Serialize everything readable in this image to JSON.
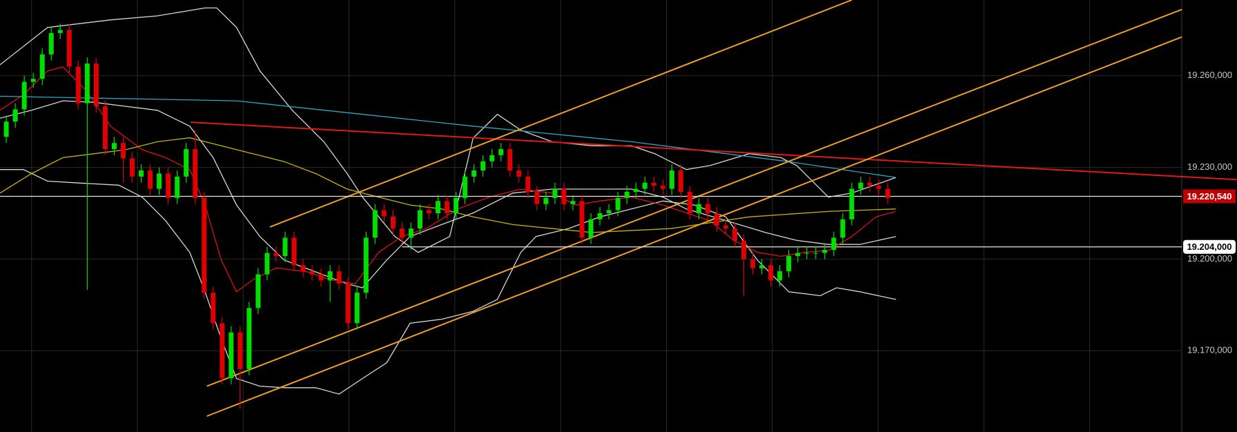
{
  "chart_data": {
    "type": "candlestick",
    "open": [
      19240,
      19245,
      19249,
      19258,
      19259,
      19267,
      19274,
      19275,
      19263,
      19251,
      19264,
      19250,
      19236,
      19238,
      19233,
      19227,
      19229,
      19223,
      19228,
      19220,
      19227,
      19236,
      19220,
      19189,
      19179,
      19161,
      19176,
      19164,
      19184,
      19195,
      19202,
      19201,
      19207,
      19198,
      19196,
      19195,
      19193,
      19196,
      19192,
      19179,
      19189,
      19207,
      19216,
      19214,
      19210,
      19207,
      19210,
      19216,
      19215,
      19219,
      19215,
      19220,
      19227,
      19229,
      19232,
      19234,
      19236,
      19229,
      19227,
      19222,
      19218,
      19220,
      19223,
      19218,
      19219,
      19207,
      19213,
      19215,
      19216,
      19220,
      19222,
      19223,
      19225,
      19224,
      19223,
      19229,
      19222,
      19215,
      19218,
      19215,
      19211,
      19210,
      19206,
      19200,
      19197,
      19198,
      19193,
      19196,
      19201,
      19202,
      19202,
      19202,
      19203,
      19207,
      19213,
      19223,
      19225,
      19224,
      19223
    ],
    "high": [
      19247,
      19251,
      19260,
      19261,
      19269,
      19276,
      19277,
      19277,
      19265,
      19266,
      19266,
      19252,
      19240,
      19240,
      19235,
      19231,
      19231,
      19230,
      19230,
      19229,
      19238,
      19242,
      19222,
      19191,
      19181,
      19178,
      19178,
      19186,
      19197,
      19204,
      19204,
      19209,
      19209,
      19200,
      19198,
      19197,
      19198,
      19198,
      19194,
      19191,
      19209,
      19218,
      19218,
      19216,
      19212,
      19212,
      19218,
      19218,
      19221,
      19221,
      19222,
      19229,
      19231,
      19234,
      19236,
      19238,
      19238,
      19231,
      19229,
      19224,
      19222,
      19225,
      19225,
      19221,
      19221,
      19215,
      19217,
      19218,
      19222,
      19224,
      19225,
      19227,
      19227,
      19226,
      19231,
      19231,
      19224,
      19220,
      19220,
      19217,
      19213,
      19212,
      19208,
      19202,
      19200,
      19200,
      19198,
      19203,
      19204,
      19204,
      19204,
      19205,
      19209,
      19215,
      19225,
      19227,
      19227,
      19226,
      19225
    ],
    "low": [
      19238,
      19243,
      19247,
      19256,
      19257,
      19265,
      19272,
      19261,
      19249,
      19190,
      19248,
      19234,
      19234,
      19225,
      19225,
      19225,
      19221,
      19221,
      19218,
      19218,
      19225,
      19218,
      19187,
      19177,
      19159,
      19159,
      19151,
      19162,
      19182,
      19193,
      19199,
      19199,
      19196,
      19194,
      19193,
      19191,
      19186,
      19190,
      19177,
      19177,
      19187,
      19205,
      19212,
      19208,
      19205,
      19203,
      19208,
      19213,
      19213,
      19213,
      19213,
      19218,
      19225,
      19227,
      19230,
      19232,
      19227,
      19225,
      19220,
      19216,
      19216,
      19218,
      19216,
      19216,
      19205,
      19205,
      19211,
      19213,
      19214,
      19218,
      19220,
      19221,
      19222,
      19221,
      19221,
      19220,
      19213,
      19213,
      19213,
      19209,
      19208,
      19204,
      19188,
      19195,
      19195,
      19191,
      19191,
      19194,
      19199,
      19200,
      19200,
      19200,
      19201,
      19205,
      19211,
      19221,
      19222,
      19221,
      19218
    ],
    "close": [
      19245,
      19249,
      19258,
      19259,
      19267,
      19274,
      19275,
      19263,
      19251,
      19264,
      19250,
      19236,
      19238,
      19233,
      19227,
      19229,
      19223,
      19228,
      19220,
      19227,
      19236,
      19220,
      19189,
      19179,
      19161,
      19176,
      19164,
      19184,
      19195,
      19202,
      19201,
      19207,
      19198,
      19196,
      19195,
      19193,
      19196,
      19192,
      19179,
      19189,
      19207,
      19216,
      19214,
      19210,
      19207,
      19210,
      19216,
      19215,
      19219,
      19215,
      19220,
      19227,
      19229,
      19232,
      19234,
      19236,
      19229,
      19227,
      19222,
      19218,
      19220,
      19223,
      19218,
      19219,
      19207,
      19213,
      19215,
      19216,
      19220,
      19222,
      19223,
      19225,
      19224,
      19223,
      19229,
      19222,
      19215,
      19218,
      19215,
      19211,
      19210,
      19206,
      19200,
      19197,
      19198,
      19193,
      19196,
      19201,
      19202,
      19202,
      19202,
      19203,
      19207,
      19213,
      19223,
      19225,
      19224,
      19223,
      19220
    ],
    "up_color": "#00e000",
    "down_color": "#e00000",
    "ylim": [
      19143.4,
      19284.8
    ],
    "yticks": [
      {
        "value": 19260,
        "label": "19.260,000"
      },
      {
        "value": 19230,
        "label": "19.230,000"
      },
      {
        "value": 19200,
        "label": "19.200,000"
      },
      {
        "value": 19170,
        "label": "19.170,000"
      }
    ],
    "grid": true,
    "overlays": [
      {
        "color": "#d8d8d8",
        "x": [
          -0.7,
          4.6,
          11.6,
          16.8,
          22.1,
          23.4,
          25.6,
          28.2,
          31.8,
          35.3,
          37.9,
          39.6,
          43.2,
          45.8,
          49.3,
          51.9,
          54.6,
          57.2,
          60.7,
          65.1,
          69.5,
          72.1,
          75.6,
          78.2,
          82.6,
          86.1,
          87.9,
          91.4,
          94.0,
          98.9
        ],
        "values": [
          19263.6,
          19275.8,
          19278.3,
          19279.6,
          19282.2,
          19282.2,
          19275.8,
          19261.6,
          19248.7,
          19238.4,
          19228.0,
          19220.3,
          19207.4,
          19202.2,
          19207.4,
          19239.6,
          19247.4,
          19242.2,
          19238.4,
          19237.1,
          19237.1,
          19234.5,
          19229.3,
          19230.6,
          19234.5,
          19233.2,
          19230.6,
          19220.3,
          19221.6,
          19226.7
        ]
      },
      {
        "color": "#d8d8d8",
        "x": [
          -0.7,
          1.9,
          4.6,
          8.1,
          12.5,
          15.1,
          17.7,
          20.4,
          22.1,
          23.9,
          25.6,
          28.2,
          30.9,
          34.4,
          37.0,
          39.6,
          42.3,
          44.9,
          48.4,
          51.9,
          54.6,
          57.2,
          58.9,
          62.5,
          66.0,
          69.5,
          73.0,
          76.5,
          80.0,
          83.5,
          87.0,
          90.5,
          92.3,
          94.9,
          98.9
        ],
        "values": [
          19229.3,
          19229.3,
          19225.5,
          19224.9,
          19224.2,
          19220.3,
          19212.6,
          19202.2,
          19189.3,
          19173.9,
          19160.9,
          19158.4,
          19157.9,
          19157.9,
          19155.8,
          19160.9,
          19166.1,
          19179.0,
          19180.3,
          19182.9,
          19186.8,
          19202.2,
          19207.4,
          19210.0,
          19213.8,
          19216.4,
          19219.0,
          19217.7,
          19213.8,
          19199.7,
          19189.3,
          19188.0,
          19190.6,
          19189.3,
          19186.8
        ]
      },
      {
        "color": "#d8d8d8",
        "x": [
          -0.7,
          2.8,
          6.3,
          9.8,
          13.3,
          16.8,
          20.4,
          23.0,
          25.6,
          28.2,
          30.9,
          34.4,
          37.9,
          39.6,
          42.3,
          44.9,
          48.4,
          51.9,
          56.3,
          60.7,
          69.5,
          73.0,
          75.6,
          80.0,
          84.4,
          87.9,
          91.4,
          94.9,
          98.9
        ],
        "values": [
          19246.1,
          19248.7,
          19251.8,
          19251.3,
          19250.0,
          19248.7,
          19243.5,
          19233.2,
          19217.7,
          19207.4,
          19199.7,
          19195.8,
          19191.9,
          19190.6,
          19199.7,
          19207.4,
          19211.3,
          19215.1,
          19221.6,
          19222.9,
          19222.9,
          19220.3,
          19216.4,
          19212.6,
          19208.7,
          19206.1,
          19204.8,
          19204.8,
          19207.4
        ]
      },
      {
        "color": "#e01010",
        "x": [
          -0.7,
          1.9,
          4.6,
          6.3,
          8.9,
          11.6,
          15.1,
          17.7,
          20.4,
          22.1,
          23.9,
          25.6,
          27.4,
          30.0,
          33.5,
          36.1,
          38.8,
          41.4,
          44.0,
          46.7,
          50.2,
          53.7,
          57.2,
          60.7,
          63.3,
          66.0,
          69.5,
          73.0,
          75.6,
          78.2,
          80.9,
          83.5,
          86.1,
          88.8,
          91.4,
          94.0,
          96.7,
          98.9
        ],
        "values": [
          19248.7,
          19253.8,
          19261.6,
          19262.9,
          19255.1,
          19243.5,
          19235.8,
          19233.2,
          19229.3,
          19217.7,
          19199.7,
          19189.3,
          19193.2,
          19197.1,
          19195.8,
          19193.2,
          19191.9,
          19202.2,
          19207.4,
          19210.0,
          19216.4,
          19220.3,
          19222.9,
          19221.6,
          19217.7,
          19219.0,
          19220.3,
          19217.7,
          19215.1,
          19212.6,
          19206.1,
          19202.2,
          19200.9,
          19202.2,
          19202.8,
          19207.4,
          19213.8,
          19215.6
        ]
      },
      {
        "color": "#c8b400",
        "x": [
          -0.7,
          2.8,
          6.3,
          9.8,
          13.3,
          16.8,
          20.4,
          23.9,
          27.4,
          30.9,
          34.4,
          37.9,
          41.4,
          44.9,
          48.4,
          51.9,
          56.3,
          60.7,
          65.1,
          73.9,
          82.6,
          91.4,
          98.9
        ],
        "values": [
          19221.6,
          19228.0,
          19233.2,
          19234.5,
          19235.8,
          19238.4,
          19239.7,
          19237.1,
          19234.5,
          19231.9,
          19228.0,
          19222.9,
          19220.3,
          19217.7,
          19216.4,
          19213.8,
          19211.3,
          19210.0,
          19208.7,
          19210.0,
          19213.8,
          19215.6,
          19216.4
        ]
      },
      {
        "color": "#2aa8c8",
        "x": [
          -0.7,
          25.6,
          51.9,
          69.5,
          87.0,
          98.9
        ],
        "values": [
          19253.3,
          19251.8,
          19243.5,
          19238.4,
          19231.9,
          19226.7
        ]
      },
      {
        "color": "#e01818",
        "x": [
          20.5,
          136.8
        ],
        "values": [
          19244.8,
          19226.0
        ]
      },
      {
        "color": "#f0a020",
        "x": [
          29.3,
          94.0
        ],
        "values": [
          19210.5,
          19284.8
        ]
      },
      {
        "color": "#f0a020",
        "x": [
          22.3,
          130.7
        ],
        "values": [
          19158.4,
          19281.7
        ]
      },
      {
        "color": "#f0a020",
        "x": [
          22.3,
          130.7
        ],
        "values": [
          19148.6,
          19272.7
        ]
      }
    ],
    "price_lines": [
      {
        "value": 19220.54,
        "label": "19.220,540",
        "color": "#c00000",
        "text_color": "#ffffff",
        "x_from": -1
      },
      {
        "value": 19204,
        "label": "19.204,000",
        "color": "#ffffff",
        "text_color": "#000000",
        "x_from": 44
      }
    ]
  }
}
